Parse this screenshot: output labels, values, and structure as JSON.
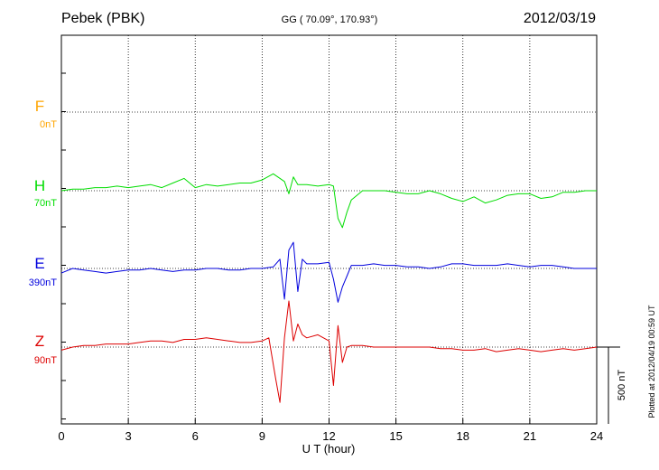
{
  "header": {
    "station": "Pebek (PBK)",
    "coords": "GG ( 70.09°, 170.93°)",
    "date": "2012/03/19"
  },
  "plotted_note": "Plotted at 2012/04/19 00:59 UT",
  "scale_label": "500 nT",
  "chart_data": {
    "type": "line",
    "xlabel": "U T (hour)",
    "xlim": [
      0,
      24
    ],
    "xticks": [
      0,
      3,
      6,
      9,
      12,
      15,
      18,
      21,
      24
    ],
    "grid": true,
    "scale_bar_nT": 500,
    "series": [
      {
        "name": "F",
        "offset_label": "0nT",
        "color": "#FFA500",
        "x": [],
        "y": []
      },
      {
        "name": "H",
        "offset_label": "70nT",
        "color": "#00DD00",
        "x": [
          0,
          0.5,
          1,
          1.5,
          2,
          2.5,
          3,
          3.5,
          4,
          4.5,
          5,
          5.5,
          6,
          6.5,
          7,
          7.5,
          8,
          8.5,
          9,
          9.5,
          10,
          10.2,
          10.4,
          10.6,
          11,
          11.5,
          12,
          12.2,
          12.4,
          12.6,
          12.8,
          13,
          13.5,
          14,
          14.5,
          15,
          15.5,
          16,
          16.5,
          17,
          17.5,
          18,
          18.5,
          19,
          19.5,
          20,
          20.5,
          21,
          21.5,
          22,
          22.5,
          23,
          23.5,
          24
        ],
        "y": [
          0,
          10,
          10,
          20,
          20,
          30,
          20,
          30,
          40,
          20,
          50,
          80,
          20,
          40,
          30,
          40,
          50,
          50,
          70,
          110,
          60,
          -20,
          90,
          40,
          40,
          30,
          40,
          30,
          -180,
          -240,
          -140,
          -60,
          0,
          0,
          0,
          -10,
          -20,
          -20,
          0,
          -20,
          -50,
          -70,
          -40,
          -80,
          -60,
          -30,
          -20,
          -20,
          -50,
          -40,
          -10,
          -10,
          0,
          0
        ]
      },
      {
        "name": "E",
        "offset_label": "390nT",
        "color": "#0000DD",
        "x": [
          0,
          0.5,
          1,
          1.5,
          2,
          2.5,
          3,
          3.5,
          4,
          4.5,
          5,
          5.5,
          6,
          6.5,
          7,
          7.5,
          8,
          8.5,
          9,
          9.5,
          9.8,
          10,
          10.2,
          10.4,
          10.6,
          10.8,
          11,
          11.5,
          12,
          12.2,
          12.4,
          12.6,
          12.8,
          13,
          13.5,
          14,
          14.5,
          15,
          15.5,
          16,
          16.5,
          17,
          17.5,
          18,
          18.5,
          19,
          19.5,
          20,
          20.5,
          21,
          21.5,
          22,
          22.5,
          23,
          23.5,
          24
        ],
        "y": [
          -30,
          0,
          -10,
          -20,
          -30,
          -20,
          -10,
          -10,
          0,
          -10,
          -20,
          -10,
          -10,
          0,
          0,
          -10,
          -10,
          0,
          0,
          10,
          60,
          -200,
          120,
          170,
          -150,
          60,
          30,
          30,
          40,
          -70,
          -220,
          -120,
          -50,
          20,
          20,
          30,
          20,
          20,
          10,
          10,
          0,
          10,
          30,
          30,
          20,
          20,
          20,
          30,
          20,
          10,
          20,
          20,
          10,
          0,
          0,
          0
        ]
      },
      {
        "name": "Z",
        "offset_label": "90nT",
        "color": "#DD0000",
        "x": [
          0,
          0.5,
          1,
          1.5,
          2,
          2.5,
          3,
          3.5,
          4,
          4.5,
          5,
          5.5,
          6,
          6.5,
          7,
          7.5,
          8,
          8.5,
          9,
          9.3,
          9.6,
          9.8,
          10,
          10.2,
          10.4,
          10.6,
          10.8,
          11,
          11.5,
          12,
          12.2,
          12.4,
          12.6,
          12.8,
          13,
          13.5,
          14,
          14.5,
          15,
          15.5,
          16,
          16.5,
          17,
          17.5,
          18,
          18.5,
          19,
          19.5,
          20,
          20.5,
          21,
          21.5,
          22,
          22.5,
          23,
          23.5,
          24
        ],
        "y": [
          -20,
          0,
          10,
          10,
          20,
          20,
          20,
          30,
          40,
          40,
          30,
          50,
          50,
          60,
          50,
          40,
          30,
          30,
          40,
          60,
          -200,
          -360,
          60,
          300,
          40,
          150,
          80,
          60,
          80,
          40,
          -250,
          140,
          -100,
          0,
          10,
          10,
          0,
          0,
          0,
          0,
          0,
          0,
          -10,
          -10,
          -20,
          -20,
          -10,
          -30,
          -20,
          -10,
          -20,
          -30,
          -20,
          -10,
          -20,
          -10,
          0
        ]
      }
    ]
  }
}
